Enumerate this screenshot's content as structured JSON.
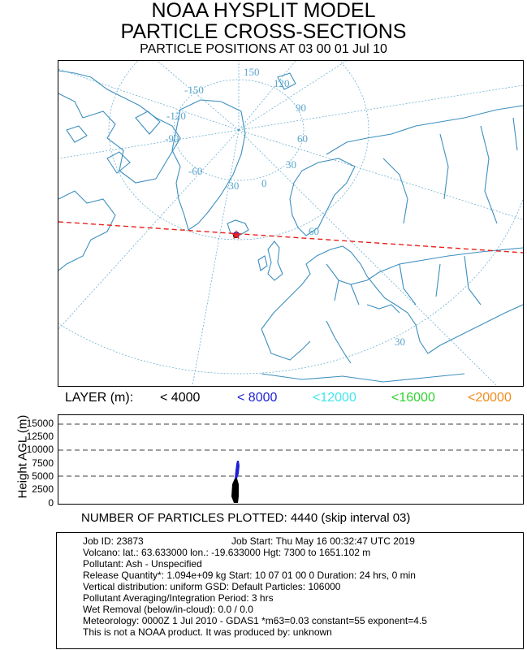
{
  "title": "NOAA HYSPLIT MODEL",
  "subtitle": "PARTICLE CROSS-SECTIONS",
  "positions_line": "PARTICLE POSITIONS AT 03 00  01 Jul 10",
  "map": {
    "meridian_labels": [
      "-150",
      "150",
      "120",
      "90",
      "-120",
      "60",
      "-90",
      "30",
      "-60",
      "0",
      "-30"
    ],
    "parallel_labels": [
      "60",
      "30"
    ],
    "source_marker": "star",
    "cross_section_line_color": "#e8211b",
    "coast_color": "#3d8fbf",
    "grid_color": "#5aa5cc"
  },
  "legend": {
    "prefix": "LAYER (m):",
    "items": [
      {
        "label": "< 4000",
        "color": "#000000"
      },
      {
        "label": "< 8000",
        "color": "#1f1fd6"
      },
      {
        "label": "<12000",
        "color": "#3fe6ee"
      },
      {
        "label": "<16000",
        "color": "#2ed32e"
      },
      {
        "label": "<20000",
        "color": "#f28a1c"
      }
    ]
  },
  "cross_section": {
    "ylabel": "Height AGL (m)",
    "yticks": [
      "15000",
      "12500",
      "10000",
      "7500",
      "5000",
      "2500",
      "0"
    ],
    "dashed_levels": [
      "15000",
      "10000",
      "5000"
    ]
  },
  "particles_line": "NUMBER OF PARTICLES PLOTTED:   4440  (skip interval     03)",
  "info": {
    "job_id": "Job ID: 23873",
    "job_start": "Job Start: Thu May 16 00:32:47 UTC 2019",
    "volcano": "Volcano:    lat.: 63.633000   lon.: -19.633000    Hgt: 7300 to 1651.102 m",
    "pollutant": "Pollutant: Ash - Unspecified",
    "release": "Release Quantity*: 1.094e+09 kg  Start: 10 07 01 00 0  Duration: 24 hrs, 0 min",
    "vertical": "Vertical distribution: uniform GSD: Default Particles: 106000",
    "averaging": "Pollutant Averaging/Integration Period: 3 hrs",
    "wet": "Wet Removal (below/in-cloud):  0.0 / 0.0",
    "meteo": "Meteorology: 0000Z  1 Jul 2010 - GDAS1  *m63=0.03 constant=55 exponent=4.5",
    "disclaimer": "This is not a NOAA product. It was produced by: unknown"
  }
}
